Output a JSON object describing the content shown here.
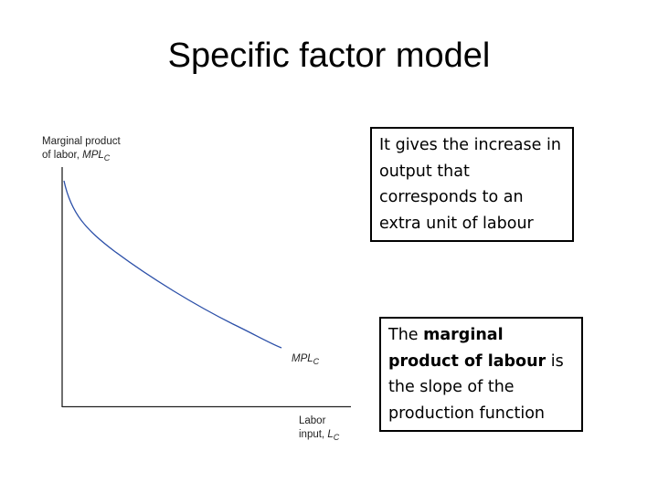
{
  "title": "Specific factor model",
  "diagram": {
    "y_axis_label": {
      "line1": "Marginal product",
      "line2": "of labor, ",
      "symbol": "MPL",
      "subscript": "C"
    },
    "curve_label": {
      "symbol": "MPL",
      "subscript": "C"
    },
    "x_axis_label": {
      "line1": "Labor",
      "line2": "input, ",
      "symbol": "L",
      "subscript": "C"
    }
  },
  "box1": {
    "text": "It gives the increase in output that corresponds to an extra unit of labour"
  },
  "box2": {
    "before": "The ",
    "bold": "marginal product of labour",
    "after": " is the slope of the production function"
  }
}
